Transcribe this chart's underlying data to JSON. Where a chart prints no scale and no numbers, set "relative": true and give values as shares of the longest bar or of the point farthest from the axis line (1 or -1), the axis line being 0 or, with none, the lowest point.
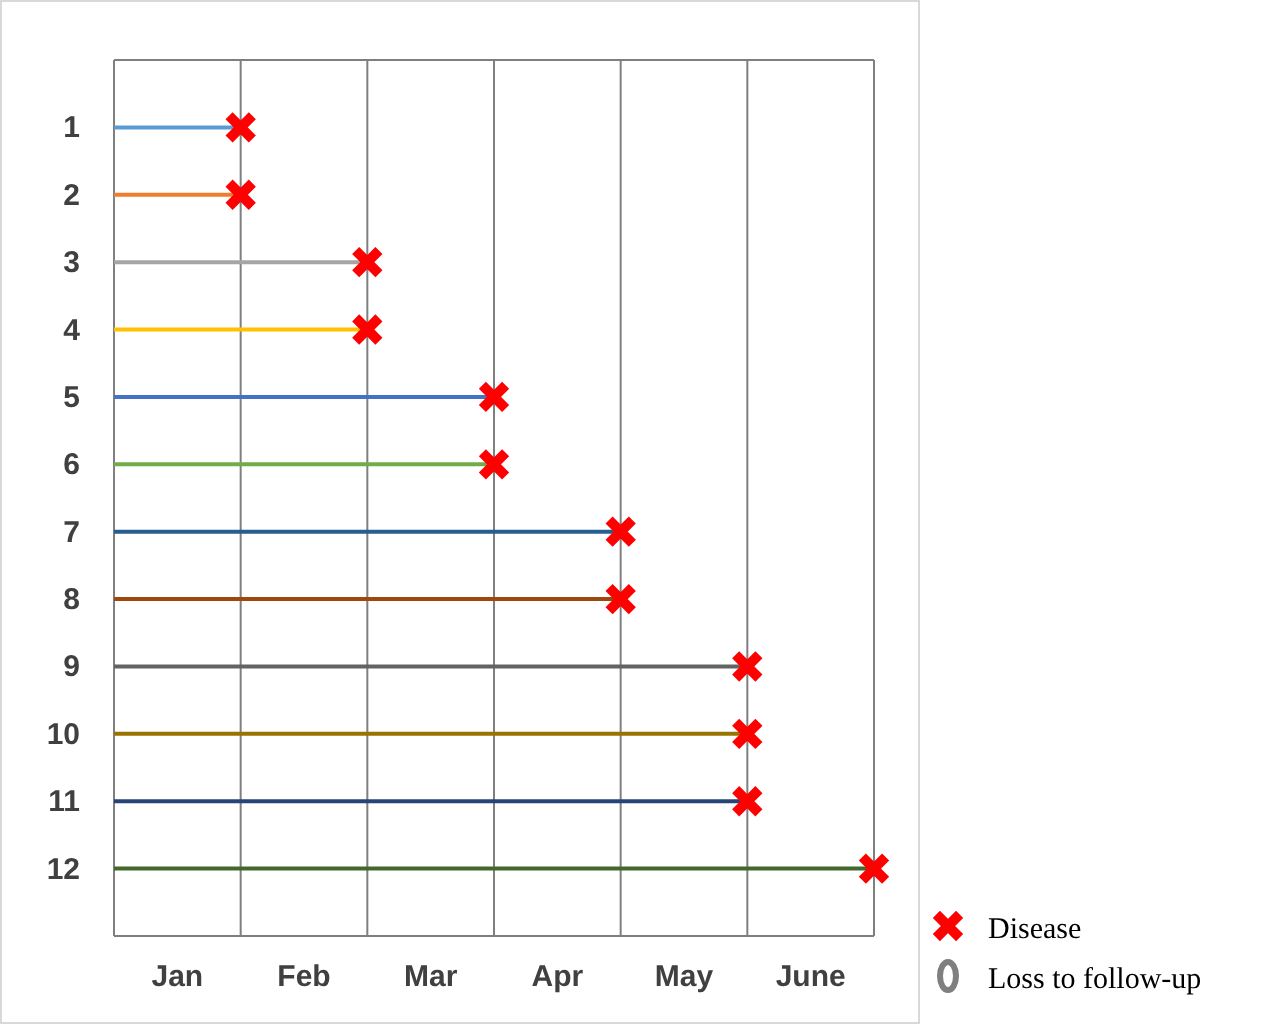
{
  "chart_data": {
    "type": "lollipop",
    "orientation": "horizontal",
    "relative": true,
    "categories": [
      "1",
      "2",
      "3",
      "4",
      "5",
      "6",
      "7",
      "8",
      "9",
      "10",
      "11",
      "12"
    ],
    "colors": [
      "#5b9bd5",
      "#ed7d31",
      "#a5a5a5",
      "#ffc000",
      "#4472c4",
      "#70ad47",
      "#255e91",
      "#9e480e",
      "#636363",
      "#997300",
      "#264478",
      "#43682b"
    ],
    "series": [
      {
        "name": "Disease",
        "color": "#ff0000",
        "marker": "cross",
        "values": [
          0.1667,
          0.1667,
          0.3333,
          0.3333,
          0.5,
          0.5,
          0.6667,
          0.6667,
          0.8333,
          0.8333,
          0.8333,
          1
        ]
      },
      {
        "name": "Loss to follow-up",
        "color": "#7f7f7f",
        "marker": "circle",
        "values": [
          null,
          null,
          null,
          null,
          null,
          null,
          null,
          null,
          null,
          null,
          null,
          null
        ]
      }
    ],
    "annotations": [
      "Jan",
      "Feb",
      "Mar",
      "Apr",
      "May",
      "June"
    ],
    "grid": "x",
    "legend": "bottom right"
  }
}
